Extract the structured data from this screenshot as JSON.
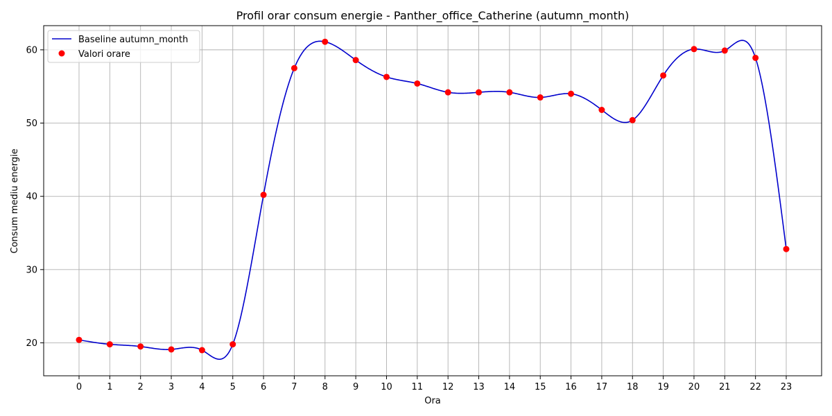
{
  "chart_data": {
    "type": "line",
    "title": "Profil orar consum energie - Panther_office_Catherine (autumn_month)",
    "xlabel": "Ora",
    "ylabel": "Consum mediu energie",
    "x": [
      0,
      1,
      2,
      3,
      4,
      5,
      6,
      7,
      8,
      9,
      10,
      11,
      12,
      13,
      14,
      15,
      16,
      17,
      18,
      19,
      20,
      21,
      22,
      23
    ],
    "xticks": [
      "0",
      "1",
      "2",
      "3",
      "4",
      "5",
      "6",
      "7",
      "8",
      "9",
      "10",
      "11",
      "12",
      "13",
      "14",
      "15",
      "16",
      "17",
      "18",
      "19",
      "20",
      "21",
      "22",
      "23"
    ],
    "yticks": [
      "20",
      "30",
      "40",
      "50",
      "60"
    ],
    "xlim": [
      -1.15,
      24.15
    ],
    "ylim": [
      15.5,
      63.3
    ],
    "grid": true,
    "legend_position": "top-left",
    "series": [
      {
        "name": "Baseline autumn_month",
        "kind": "line",
        "color": "#0000cc",
        "smoothing": "cubic spline",
        "values": [
          20.4,
          19.8,
          19.5,
          19.1,
          19.0,
          19.8,
          40.2,
          57.5,
          61.1,
          58.6,
          56.3,
          55.4,
          54.2,
          54.2,
          54.2,
          53.5,
          54.0,
          51.8,
          50.4,
          56.5,
          60.1,
          59.9,
          58.9,
          32.8
        ]
      },
      {
        "name": "Valori orare",
        "kind": "scatter",
        "color": "#ff0000",
        "values": [
          20.4,
          19.8,
          19.5,
          19.1,
          19.0,
          19.8,
          40.2,
          57.5,
          61.1,
          58.6,
          56.3,
          55.4,
          54.2,
          54.2,
          54.2,
          53.5,
          54.0,
          51.8,
          50.4,
          56.5,
          60.1,
          59.9,
          58.9,
          32.8
        ]
      }
    ]
  }
}
